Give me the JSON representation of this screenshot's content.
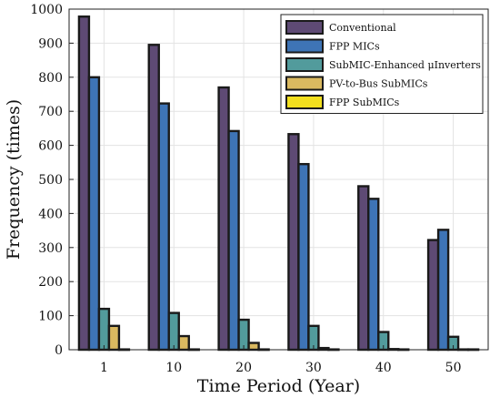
{
  "chart_data": {
    "type": "bar",
    "title": "",
    "xlabel": "Time Period (Year)",
    "ylabel": "Frequency (times)",
    "ylim": [
      0,
      1000
    ],
    "yticks": [
      0,
      100,
      200,
      300,
      400,
      500,
      600,
      700,
      800,
      900,
      1000
    ],
    "grid": true,
    "legend_position": "top-right",
    "categories": [
      "1",
      "10",
      "20",
      "30",
      "40",
      "50"
    ],
    "series": [
      {
        "name": "Conventional",
        "color": "#5e4a74",
        "values": [
          978,
          895,
          770,
          633,
          480,
          322
        ]
      },
      {
        "name": "FPP MICs",
        "color": "#3e74b6",
        "values": [
          800,
          723,
          642,
          545,
          443,
          352
        ]
      },
      {
        "name": "SubMIC-Enhanced μInverters",
        "color": "#529b9c",
        "values": [
          120,
          108,
          88,
          70,
          52,
          38
        ]
      },
      {
        "name": "PV-to-Bus SubMICs",
        "color": "#dab960",
        "values": [
          70,
          40,
          20,
          5,
          2,
          1
        ]
      },
      {
        "name": "FPP SubMICs",
        "color": "#f2df1e",
        "values": [
          1,
          1,
          1,
          1,
          1,
          1
        ]
      }
    ]
  }
}
